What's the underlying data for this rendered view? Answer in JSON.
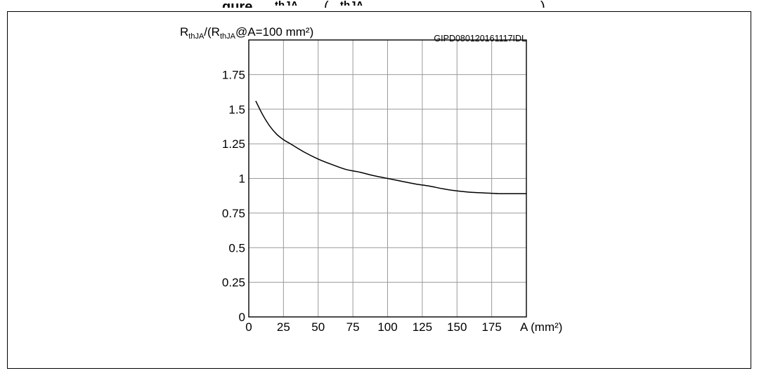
{
  "header": {
    "figure_title_fragment_1": "gure",
    "figure_title_fragment_2": "thJA",
    "figure_title_fragment_3": "(",
    "figure_title_fragment_4": "thJA",
    "figure_title_fragment_5": ")"
  },
  "chart_data": {
    "type": "line",
    "code_label": "GIPD080120161117IDL",
    "ylabel": {
      "parts": [
        "R",
        "thJA",
        "/(R",
        "thJA",
        "@A=100 mm²)"
      ]
    },
    "xlabel": "A (mm²)",
    "xlim": [
      0,
      200
    ],
    "ylim": [
      0,
      2
    ],
    "x_ticks": [
      "0",
      "25",
      "50",
      "75",
      "100",
      "125",
      "150",
      "175"
    ],
    "y_ticks": [
      "0",
      "0.25",
      "0.5",
      "0.75",
      "1",
      "1.25",
      "1.5",
      "1.75"
    ],
    "grid": true,
    "line_color": "#000000",
    "grid_color": "#9a9a9a",
    "series": [
      {
        "x": [
          5,
          10,
          15,
          20,
          25,
          30,
          40,
          50,
          60,
          70,
          80,
          90,
          100,
          110,
          120,
          130,
          140,
          150,
          160,
          170,
          180,
          190,
          200
        ],
        "values": [
          1.56,
          1.46,
          1.38,
          1.32,
          1.28,
          1.25,
          1.19,
          1.14,
          1.1,
          1.065,
          1.045,
          1.02,
          1.0,
          0.98,
          0.96,
          0.945,
          0.925,
          0.91,
          0.9,
          0.895,
          0.89,
          0.89,
          0.89
        ]
      }
    ]
  }
}
